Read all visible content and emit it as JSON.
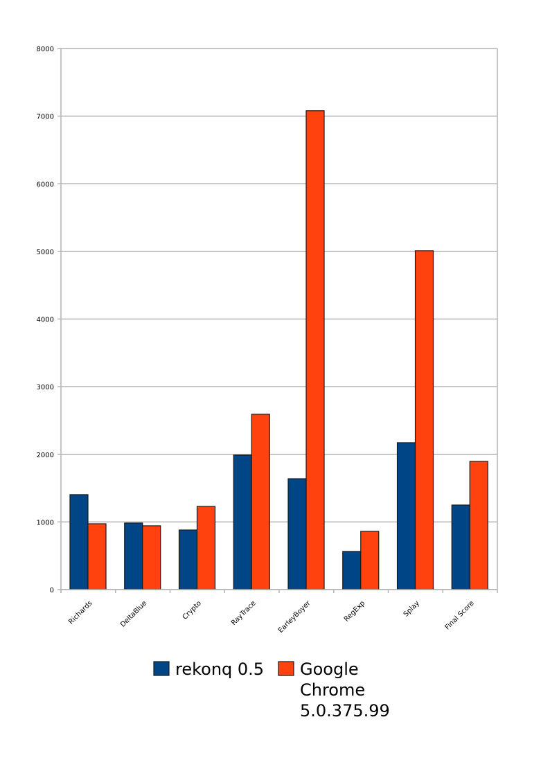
{
  "chart_data": {
    "type": "bar",
    "title": "",
    "xlabel": "",
    "ylabel": "",
    "ylim": [
      0,
      8000
    ],
    "yticks": [
      0,
      1000,
      2000,
      3000,
      4000,
      5000,
      6000,
      7000,
      8000
    ],
    "grid": true,
    "legend_position": "bottom",
    "categories": [
      "Richards",
      "DeltaBlue",
      "Crypto",
      "RayTrace",
      "EarleyBoyer",
      "RegExp",
      "Splay",
      "Final Score"
    ],
    "series": [
      {
        "name": "rekonq 0.5",
        "legend_lines": [
          "rekonq 0.5"
        ],
        "color": "#004586",
        "values": [
          1404,
          984,
          881,
          1988,
          1639,
          564,
          2172,
          1250
        ]
      },
      {
        "name": "Google Chrome 5.0.375.99",
        "legend_lines": [
          "Google",
          "Chrome",
          "5.0.375.99"
        ],
        "color": "#ff420e",
        "values": [
          973,
          943,
          1230,
          2592,
          7080,
          861,
          5010,
          1895
        ]
      }
    ]
  }
}
